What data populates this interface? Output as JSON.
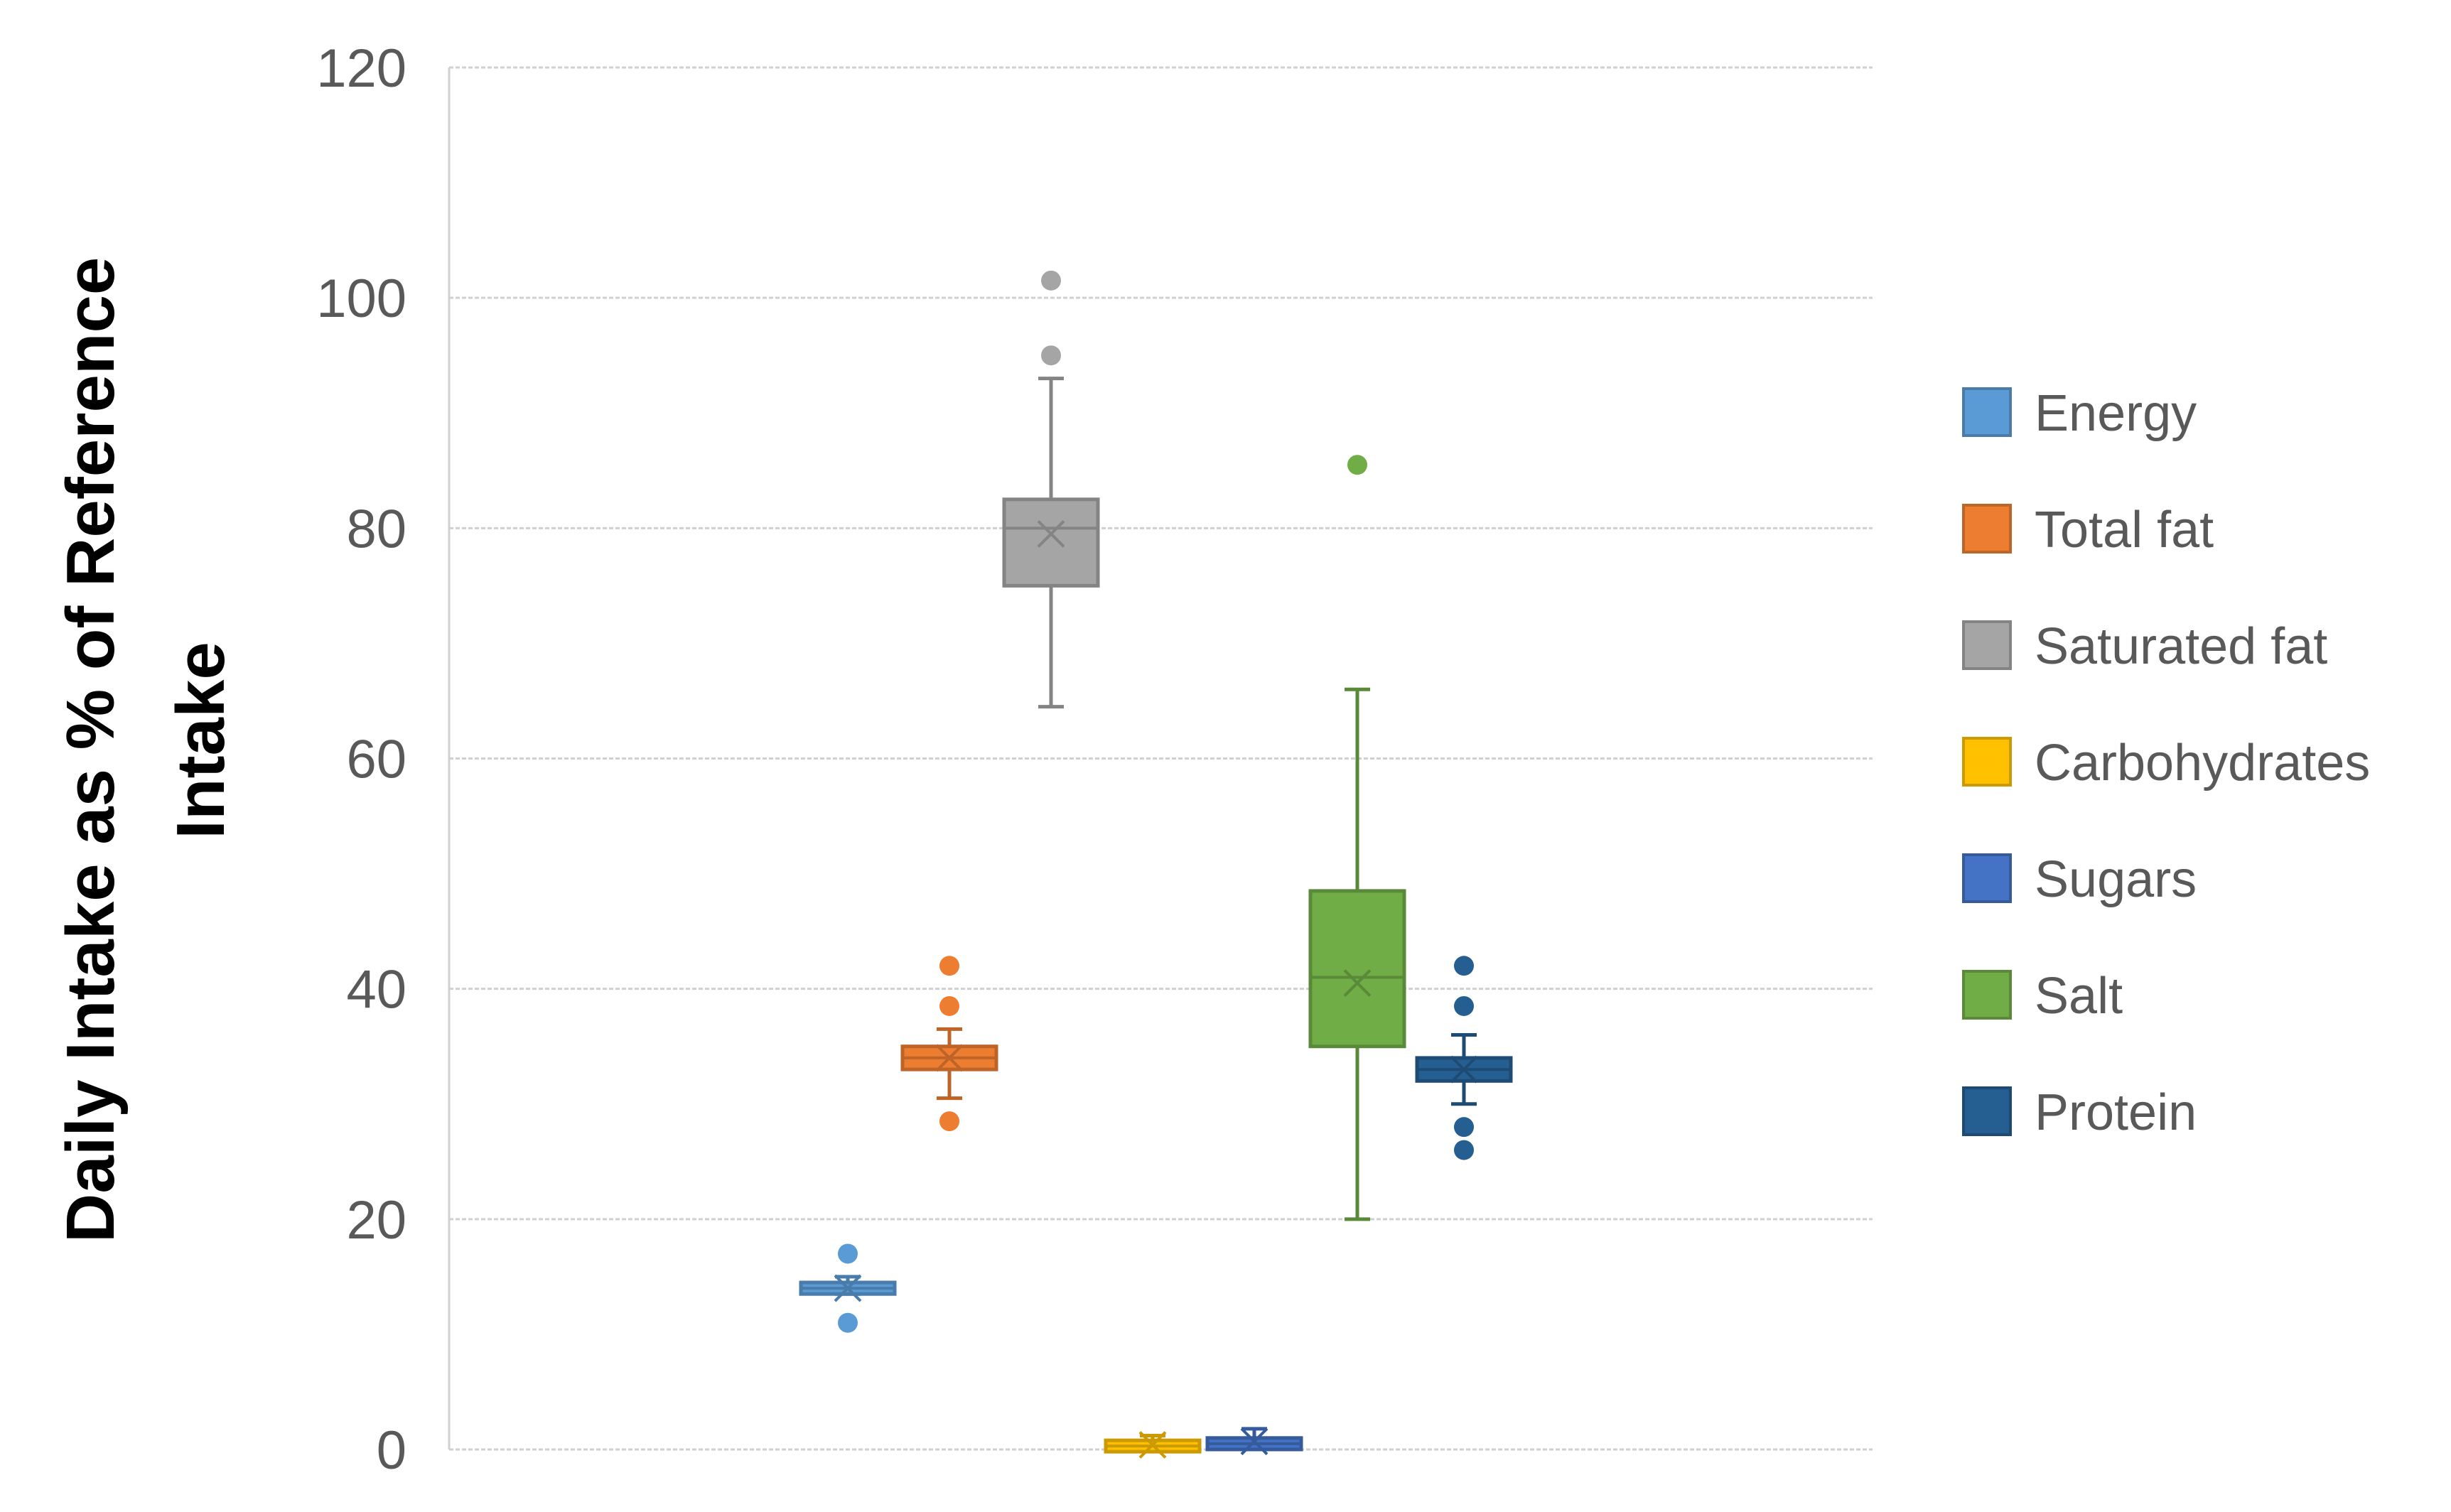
{
  "chart_data": {
    "type": "box",
    "title": "",
    "xlabel": "",
    "ylabel_lines": [
      "Daily Intake as % of Reference",
      "Intake"
    ],
    "ylim": [
      0,
      120
    ],
    "yticks": [
      0,
      20,
      40,
      60,
      80,
      100,
      120
    ],
    "grid": true,
    "legend_position": "right",
    "series": [
      {
        "name": "Energy",
        "color": "#5B9BD5",
        "min": 13.5,
        "q1": 13.5,
        "median": 14,
        "q3": 14.5,
        "max": 15,
        "mean": 14,
        "outliers": [
          17,
          11
        ]
      },
      {
        "name": "Total fat",
        "color": "#ED7D31",
        "min": 30.5,
        "q1": 33,
        "median": 34,
        "q3": 35,
        "max": 36.5,
        "mean": 34,
        "outliers": [
          42,
          38.5,
          28.5
        ]
      },
      {
        "name": "Saturated fat",
        "color": "#A5A5A5",
        "min": 64.5,
        "q1": 75,
        "median": 80,
        "q3": 82.5,
        "max": 93,
        "mean": 79.5,
        "outliers": [
          101.5,
          95
        ]
      },
      {
        "name": "Carbohydrates",
        "color": "#FFC000",
        "min": 0,
        "q1": 0,
        "median": 0.3,
        "q3": 0.6,
        "max": 1.2,
        "mean": 0.4,
        "outliers": []
      },
      {
        "name": "Sugars",
        "color": "#4472C4",
        "min": 0,
        "q1": 0,
        "median": 0.5,
        "q3": 1,
        "max": 1.8,
        "mean": 0.7,
        "outliers": []
      },
      {
        "name": "Salt",
        "color": "#70AD47",
        "min": 20,
        "q1": 35,
        "median": 41,
        "q3": 48.5,
        "max": 66,
        "mean": 40.5,
        "outliers": [
          85.5
        ]
      },
      {
        "name": "Protein",
        "color": "#255E91",
        "min": 30,
        "q1": 32,
        "median": 33,
        "q3": 34,
        "max": 36,
        "mean": 33,
        "outliers": [
          42,
          38.5,
          28,
          26
        ]
      }
    ]
  },
  "legend": {
    "items": [
      "Energy",
      "Total fat",
      "Saturated fat",
      "Carbohydrates",
      "Sugars",
      "Salt",
      "Protein"
    ]
  },
  "colors": {
    "grid": "#D0D0D0",
    "axis_text": "#595959",
    "ylabel": "#000000"
  }
}
